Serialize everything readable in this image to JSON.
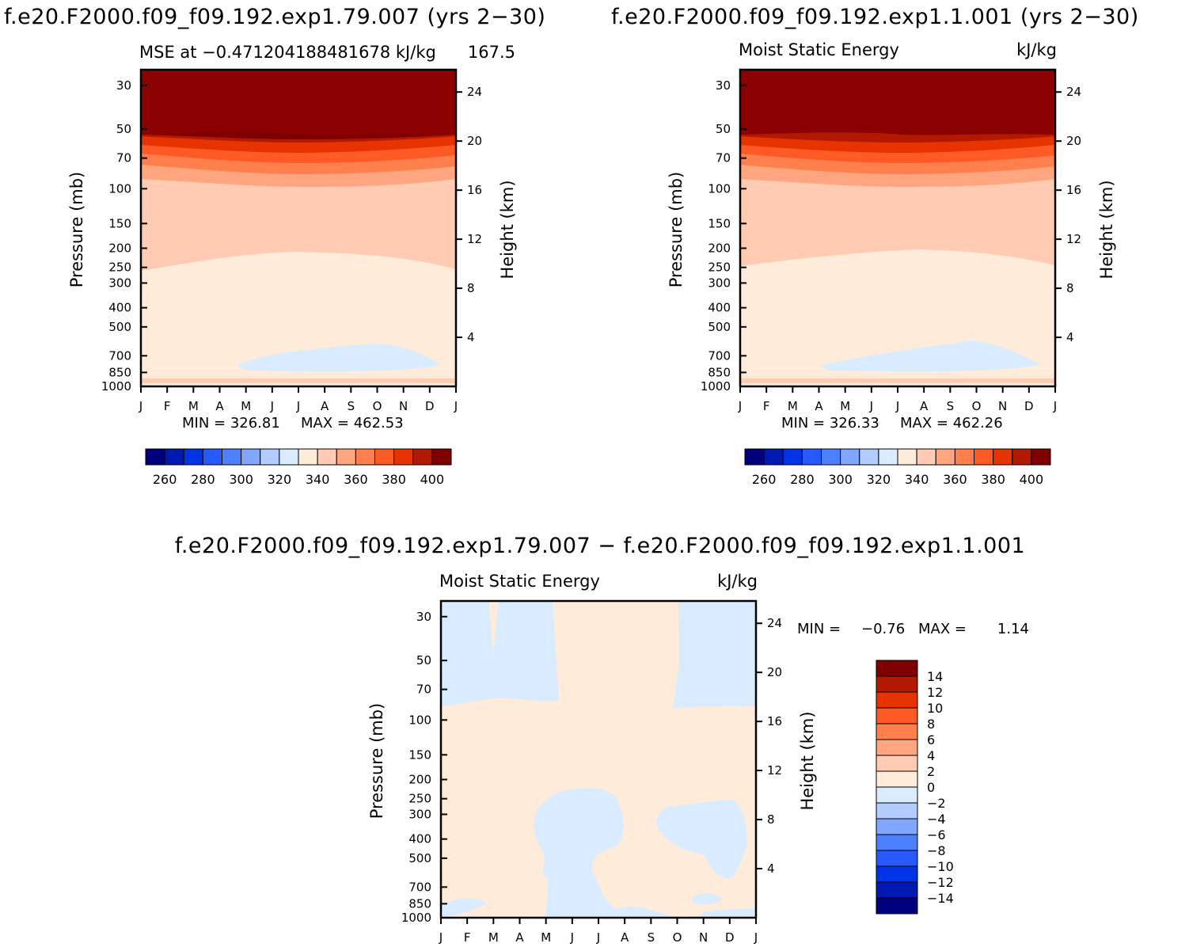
{
  "figure": {
    "title_left": "f.e20.F2000.f09_f09.192.exp1.79.007 (yrs 2−30)",
    "title_right": "f.e20.F2000.f09_f09.192.exp1.1.001 (yrs 2−30)",
    "title_diff": "f.e20.F2000.f09_f09.192.exp1.79.007 − f.e20.F2000.f09_f09.192.exp1.1.001"
  },
  "colors": {
    "abs_scale": [
      "#00007F",
      "#0019B3",
      "#0033E6",
      "#2659FF",
      "#4D80FF",
      "#80A6FF",
      "#B3CCFF",
      "#D9EBFF",
      "#FFEBD9",
      "#FFCCB3",
      "#FFA680",
      "#FF804D",
      "#FF5926",
      "#E63300",
      "#B31900",
      "#7F0000"
    ],
    "diff_scale": [
      "#00007F",
      "#0019B3",
      "#0033E6",
      "#2659FF",
      "#4D80FF",
      "#80A6FF",
      "#B3CCFF",
      "#D9EBFF",
      "#FFEBD9",
      "#FFCCB3",
      "#FFA680",
      "#FF804D",
      "#FF5926",
      "#E63300",
      "#B31900",
      "#7F0000"
    ]
  },
  "chart_data": [
    {
      "type": "heatmap",
      "panel": "left",
      "subtitle_left": "MSE at −0.471204188481678 kJ/kg",
      "subtitle_right": "167.5",
      "units": "",
      "ylabel": "Pressure (mb)",
      "ylabel_right": "Height (km)",
      "x_ticks": [
        "J",
        "F",
        "M",
        "A",
        "M",
        "J",
        "J",
        "A",
        "S",
        "O",
        "N",
        "D",
        "J"
      ],
      "y_ticks": [
        "30",
        "50",
        "70",
        "100",
        "150",
        "200",
        "250",
        "300",
        "400",
        "500",
        "700",
        "850",
        "1000"
      ],
      "height_ticks": [
        "24",
        "20",
        "16",
        "12",
        "8",
        "4"
      ],
      "min_label": "MIN = 326.81",
      "max_label": "MAX = 462.53",
      "min": 326.81,
      "max": 462.53,
      "colorbar_labels": [
        "260",
        "280",
        "300",
        "320",
        "340",
        "360",
        "380",
        "400"
      ],
      "colorbar_levels": [
        250,
        260,
        270,
        280,
        290,
        300,
        310,
        320,
        330,
        340,
        350,
        360,
        370,
        380,
        390,
        400
      ]
    },
    {
      "type": "heatmap",
      "panel": "right",
      "subtitle_left": "Moist Static Energy",
      "subtitle_right": "",
      "units": "kJ/kg",
      "ylabel": "Pressure (mb)",
      "ylabel_right": "Height (km)",
      "x_ticks": [
        "J",
        "F",
        "M",
        "A",
        "M",
        "J",
        "J",
        "A",
        "S",
        "O",
        "N",
        "D",
        "J"
      ],
      "y_ticks": [
        "30",
        "50",
        "70",
        "100",
        "150",
        "200",
        "250",
        "300",
        "400",
        "500",
        "700",
        "850",
        "1000"
      ],
      "height_ticks": [
        "24",
        "20",
        "16",
        "12",
        "8",
        "4"
      ],
      "min_label": "MIN = 326.33",
      "max_label": "MAX = 462.26",
      "min": 326.33,
      "max": 462.26,
      "colorbar_labels": [
        "260",
        "280",
        "300",
        "320",
        "340",
        "360",
        "380",
        "400"
      ],
      "colorbar_levels": [
        250,
        260,
        270,
        280,
        290,
        300,
        310,
        320,
        330,
        340,
        350,
        360,
        370,
        380,
        390,
        400
      ]
    },
    {
      "type": "heatmap",
      "panel": "difference",
      "subtitle_left": "Moist Static Energy",
      "subtitle_right": "",
      "units": "kJ/kg",
      "ylabel": "Pressure (mb)",
      "ylabel_right": "Height (km)",
      "x_ticks": [
        "J",
        "F",
        "M",
        "A",
        "M",
        "J",
        "J",
        "A",
        "S",
        "O",
        "N",
        "D",
        "J"
      ],
      "y_ticks": [
        "30",
        "50",
        "70",
        "100",
        "150",
        "200",
        "250",
        "300",
        "400",
        "500",
        "700",
        "850",
        "1000"
      ],
      "height_ticks": [
        "24",
        "20",
        "16",
        "12",
        "8",
        "4"
      ],
      "min_label": "MIN =",
      "min_value_label": "−0.76",
      "max_label": "MAX =",
      "max_value_label": "1.14",
      "min": -0.76,
      "max": 1.14,
      "colorbar_labels": [
        "14",
        "12",
        "10",
        "8",
        "6",
        "4",
        "2",
        "0",
        "−2",
        "−4",
        "−6",
        "−8",
        "−10",
        "−12",
        "−14"
      ],
      "colorbar_levels": [
        14,
        12,
        10,
        8,
        6,
        4,
        2,
        0,
        -2,
        -4,
        -6,
        -8,
        -10,
        -12,
        -14
      ]
    }
  ]
}
